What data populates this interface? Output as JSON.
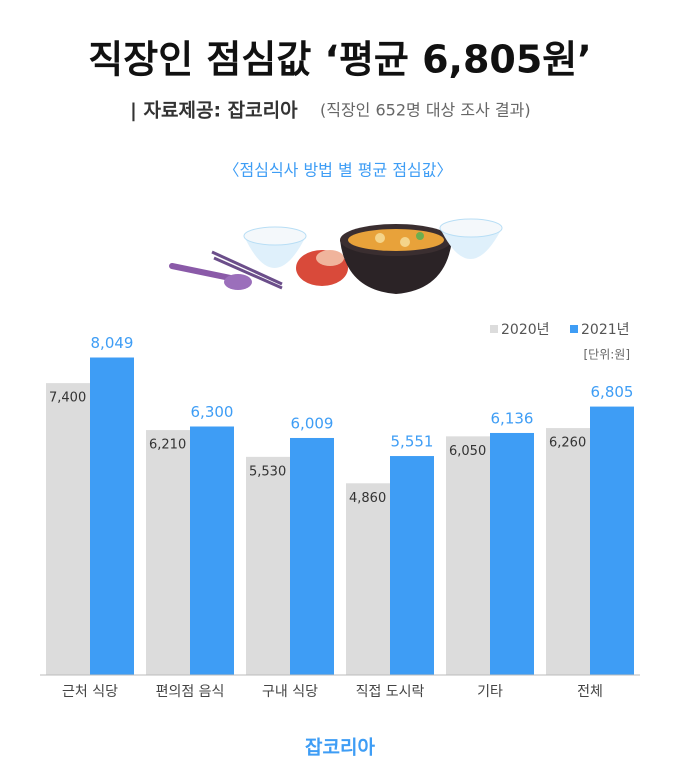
{
  "chart_data": {
    "type": "bar",
    "title": "직장인 점심값 ‘평균 6,805원’",
    "source_label": "| 자료제공: 잡코리아",
    "source_note": "(직장인 652명 대상 조사 결과)",
    "subtitle": "〈점심식사 방법 별 평균 점심값〉",
    "unit": "[단위:원]",
    "footer": "잡코리아",
    "categories": [
      "근처 식당",
      "편의점 음식",
      "구내 식당",
      "직접 도시락",
      "기타",
      "전체"
    ],
    "series": [
      {
        "name": "2020년",
        "color": "#dcdcdc",
        "values": [
          7400,
          6210,
          5530,
          4860,
          6050,
          6260
        ],
        "value_labels": [
          "7,400",
          "6,210",
          "5,530",
          "4,860",
          "6,050",
          "6,260"
        ]
      },
      {
        "name": "2021년",
        "color": "#3e9df5",
        "values": [
          8049,
          6300,
          6009,
          5551,
          6136,
          6805
        ],
        "value_labels": [
          "8,049",
          "6,300",
          "6,009",
          "5,551",
          "6,136",
          "6,805"
        ]
      }
    ],
    "ylim": [
      0,
      9000
    ],
    "legend": "top-right"
  }
}
